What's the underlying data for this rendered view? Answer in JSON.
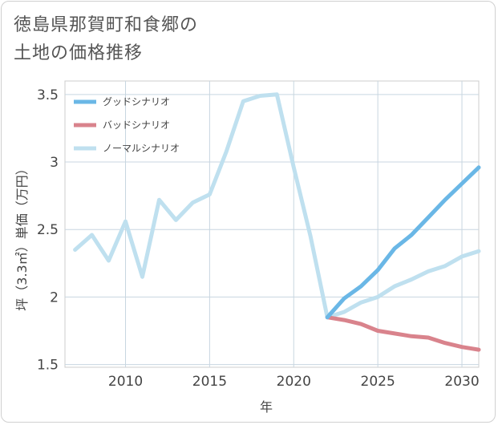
{
  "chart_data": {
    "type": "line",
    "title": "徳島県那賀町和食郷の土地の価格推移",
    "title_lines": [
      "徳島県那賀町和食郷の",
      "土地の価格推移"
    ],
    "xlabel": "年",
    "ylabel": "坪（3.3㎡）単価（万円）",
    "xlim": [
      2006.4,
      2031
    ],
    "ylim": [
      1.48,
      3.6
    ],
    "xticks": [
      2010,
      2015,
      2020,
      2025,
      2030
    ],
    "yticks": [
      1.5,
      2,
      2.5,
      3,
      3.5
    ],
    "ytick_labels": [
      "1.5",
      "2",
      "2.5",
      "3",
      "3.5"
    ],
    "grid": true,
    "legend_position": "top-left",
    "series": [
      {
        "name": "ノーマルシナリオ",
        "color": "#bfe0ef",
        "x": [
          2007,
          2008,
          2009,
          2010,
          2011,
          2012,
          2013,
          2014,
          2015,
          2016,
          2017,
          2018,
          2019,
          2020,
          2021,
          2022,
          2023,
          2024,
          2025,
          2026,
          2027,
          2028,
          2029,
          2030,
          2031
        ],
        "values": [
          2.35,
          2.46,
          2.27,
          2.56,
          2.15,
          2.72,
          2.57,
          2.7,
          2.76,
          3.08,
          3.45,
          3.49,
          3.5,
          2.96,
          2.45,
          1.85,
          1.89,
          1.96,
          2.0,
          2.08,
          2.13,
          2.19,
          2.23,
          2.3,
          2.34
        ]
      },
      {
        "name": "バッドシナリオ",
        "color": "#d9838c",
        "x": [
          2022,
          2023,
          2024,
          2025,
          2026,
          2027,
          2028,
          2029,
          2030,
          2031
        ],
        "values": [
          1.85,
          1.83,
          1.8,
          1.75,
          1.73,
          1.71,
          1.7,
          1.66,
          1.63,
          1.61
        ]
      },
      {
        "name": "グッドシナリオ",
        "color": "#6ab7e6",
        "x": [
          2022,
          2023,
          2024,
          2025,
          2026,
          2027,
          2028,
          2029,
          2030,
          2031
        ],
        "values": [
          1.85,
          1.99,
          2.08,
          2.2,
          2.36,
          2.46,
          2.59,
          2.72,
          2.84,
          2.96
        ]
      }
    ],
    "legend_order": [
      "グッドシナリオ",
      "バッドシナリオ",
      "ノーマルシナリオ"
    ]
  }
}
